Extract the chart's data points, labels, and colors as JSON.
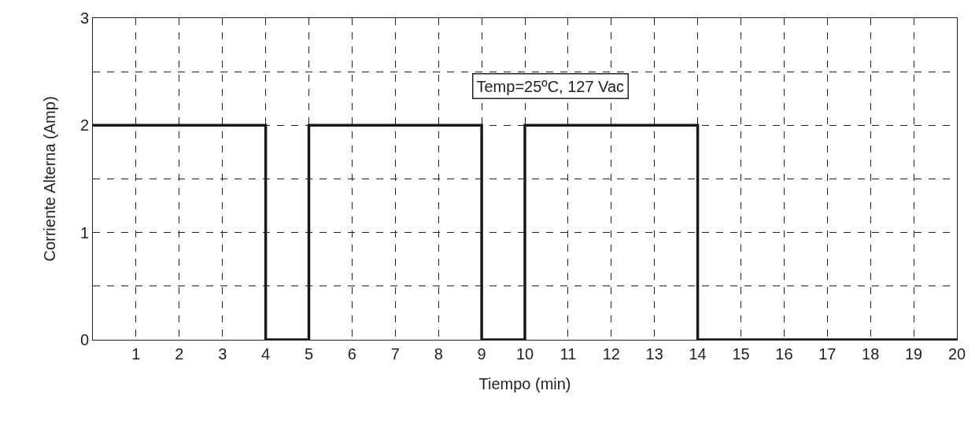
{
  "chart_data": {
    "type": "step",
    "xlabel": "Tiempo (min)",
    "ylabel": "Corriente Alterna (Amp)",
    "annotations": [
      "Temp=25ºC, 127 Vac"
    ],
    "x": [
      0,
      4,
      5,
      9,
      10,
      14,
      20
    ],
    "series": [
      {
        "color": "#1a1a1a",
        "values": [
          2,
          0,
          2,
          0,
          2,
          0,
          0
        ]
      }
    ],
    "xlim": [
      0,
      20
    ],
    "xticks": [
      {
        "value": 0,
        "label": null
      },
      1,
      2,
      3,
      4,
      5,
      6,
      7,
      8,
      9,
      10,
      11,
      12,
      13,
      14,
      15,
      16,
      17,
      18,
      19,
      20
    ],
    "ylim": [
      0,
      3
    ],
    "yticks": [
      0,
      {
        "value": 0.5,
        "label": null
      },
      1,
      {
        "value": 1.5,
        "label": null
      },
      2,
      {
        "value": 2.5,
        "label": null
      },
      3
    ],
    "grid": true,
    "line_style": "solid"
  }
}
